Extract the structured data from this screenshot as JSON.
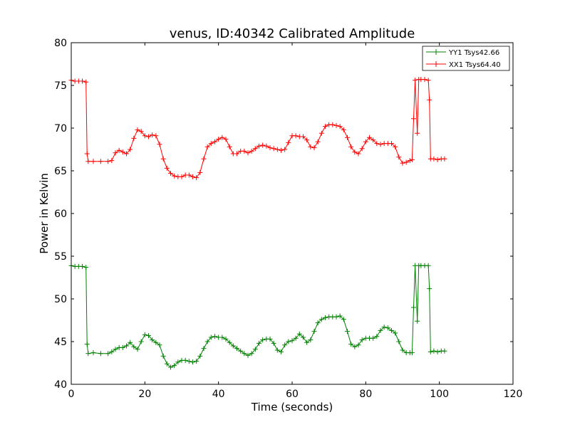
{
  "chart_data": {
    "type": "line",
    "title": "venus, ID:40342 Calibrated Amplitude",
    "xlabel": "Time (seconds)",
    "ylabel": "Power in Kelvin",
    "xlim": [
      0,
      120
    ],
    "ylim": [
      40,
      80
    ],
    "xticks": [
      "0",
      "20",
      "40",
      "60",
      "80",
      "100",
      "120"
    ],
    "yticks": [
      "40",
      "45",
      "50",
      "55",
      "60",
      "65",
      "70",
      "75",
      "80"
    ],
    "grid": false,
    "legend_position": "top-right",
    "marker": "+",
    "series": [
      {
        "name": "YY1 Tsys42.66",
        "color": "#008000",
        "points": [
          [
            0,
            53.9
          ],
          [
            1,
            53.8
          ],
          [
            2,
            53.8
          ],
          [
            3,
            53.8
          ],
          [
            4,
            53.7
          ],
          [
            4.3,
            44.7
          ],
          [
            4.6,
            43.6
          ],
          [
            6,
            43.7
          ],
          [
            8,
            43.6
          ],
          [
            10,
            43.6
          ],
          [
            11,
            43.8
          ],
          [
            12,
            44.1
          ],
          [
            13,
            44.3
          ],
          [
            14,
            44.3
          ],
          [
            15,
            44.5
          ],
          [
            16,
            44.9
          ],
          [
            17,
            44.4
          ],
          [
            18,
            44.1
          ],
          [
            19,
            45.0
          ],
          [
            20,
            45.8
          ],
          [
            21,
            45.7
          ],
          [
            22,
            45.2
          ],
          [
            23,
            44.9
          ],
          [
            24,
            44.6
          ],
          [
            25,
            43.3
          ],
          [
            26,
            42.4
          ],
          [
            27,
            42.0
          ],
          [
            28,
            42.2
          ],
          [
            29,
            42.6
          ],
          [
            30,
            42.8
          ],
          [
            31,
            42.8
          ],
          [
            32,
            42.7
          ],
          [
            33,
            42.6
          ],
          [
            34,
            42.7
          ],
          [
            35,
            43.3
          ],
          [
            36,
            44.2
          ],
          [
            37,
            45.0
          ],
          [
            38,
            45.5
          ],
          [
            39,
            45.6
          ],
          [
            40,
            45.5
          ],
          [
            41,
            45.5
          ],
          [
            42,
            45.3
          ],
          [
            43,
            44.9
          ],
          [
            44,
            44.5
          ],
          [
            45,
            44.2
          ],
          [
            46,
            43.9
          ],
          [
            47,
            43.6
          ],
          [
            48,
            43.4
          ],
          [
            49,
            43.6
          ],
          [
            50,
            44.1
          ],
          [
            51,
            44.8
          ],
          [
            52,
            45.2
          ],
          [
            53,
            45.3
          ],
          [
            54,
            45.3
          ],
          [
            55,
            44.8
          ],
          [
            56,
            44.0
          ],
          [
            57,
            43.8
          ],
          [
            58,
            44.6
          ],
          [
            59,
            45.0
          ],
          [
            60,
            45.1
          ],
          [
            61,
            45.4
          ],
          [
            62,
            45.9
          ],
          [
            63,
            45.5
          ],
          [
            64,
            44.9
          ],
          [
            65,
            45.2
          ],
          [
            66,
            46.2
          ],
          [
            67,
            47.2
          ],
          [
            68,
            47.6
          ],
          [
            69,
            47.8
          ],
          [
            70,
            47.9
          ],
          [
            71,
            47.9
          ],
          [
            72,
            47.9
          ],
          [
            73,
            48.0
          ],
          [
            74,
            47.6
          ],
          [
            75,
            46.2
          ],
          [
            76,
            44.7
          ],
          [
            77,
            44.4
          ],
          [
            78,
            44.6
          ],
          [
            79,
            45.2
          ],
          [
            80,
            45.4
          ],
          [
            81,
            45.4
          ],
          [
            82,
            45.4
          ],
          [
            83,
            45.6
          ],
          [
            84,
            46.3
          ],
          [
            85,
            46.7
          ],
          [
            86,
            46.6
          ],
          [
            87,
            46.3
          ],
          [
            88,
            46.0
          ],
          [
            89,
            45.0
          ],
          [
            90,
            44.0
          ],
          [
            91,
            43.7
          ],
          [
            92,
            43.7
          ],
          [
            92.6,
            43.7
          ],
          [
            93,
            49.0
          ],
          [
            93.4,
            53.9
          ],
          [
            94,
            47.4
          ],
          [
            94.4,
            53.9
          ],
          [
            95,
            53.9
          ],
          [
            96,
            53.9
          ],
          [
            97,
            53.9
          ],
          [
            97.3,
            51.2
          ],
          [
            97.6,
            43.8
          ],
          [
            98.5,
            43.9
          ],
          [
            99.5,
            43.8
          ],
          [
            100.5,
            43.9
          ],
          [
            101.4,
            43.9
          ]
        ]
      },
      {
        "name": "XX1 Tsys64.40",
        "color": "#ff0000",
        "points": [
          [
            0,
            75.6
          ],
          [
            1,
            75.5
          ],
          [
            2,
            75.5
          ],
          [
            3,
            75.5
          ],
          [
            4,
            75.4
          ],
          [
            4.3,
            67.0
          ],
          [
            4.6,
            66.1
          ],
          [
            6,
            66.1
          ],
          [
            8,
            66.1
          ],
          [
            10,
            66.1
          ],
          [
            11,
            66.2
          ],
          [
            12,
            67.1
          ],
          [
            13,
            67.4
          ],
          [
            14,
            67.2
          ],
          [
            15,
            67.0
          ],
          [
            16,
            67.5
          ],
          [
            17,
            68.8
          ],
          [
            18,
            69.8
          ],
          [
            19,
            69.6
          ],
          [
            20,
            69.1
          ],
          [
            21,
            69.0
          ],
          [
            22,
            69.2
          ],
          [
            23,
            69.1
          ],
          [
            24,
            68.1
          ],
          [
            25,
            66.4
          ],
          [
            26,
            65.3
          ],
          [
            27,
            64.7
          ],
          [
            28,
            64.4
          ],
          [
            29,
            64.3
          ],
          [
            30,
            64.3
          ],
          [
            31,
            64.5
          ],
          [
            32,
            64.5
          ],
          [
            33,
            64.3
          ],
          [
            34,
            64.2
          ],
          [
            35,
            64.8
          ],
          [
            36,
            66.4
          ],
          [
            37,
            67.8
          ],
          [
            38,
            68.2
          ],
          [
            39,
            68.4
          ],
          [
            40,
            68.7
          ],
          [
            41,
            68.9
          ],
          [
            42,
            68.7
          ],
          [
            43,
            67.8
          ],
          [
            44,
            67.0
          ],
          [
            45,
            67.0
          ],
          [
            46,
            67.3
          ],
          [
            47,
            67.3
          ],
          [
            48,
            67.1
          ],
          [
            49,
            67.3
          ],
          [
            50,
            67.6
          ],
          [
            51,
            67.9
          ],
          [
            52,
            68.0
          ],
          [
            53,
            67.9
          ],
          [
            54,
            67.7
          ],
          [
            55,
            67.6
          ],
          [
            56,
            67.5
          ],
          [
            57,
            67.4
          ],
          [
            58,
            67.5
          ],
          [
            59,
            68.3
          ],
          [
            60,
            69.1
          ],
          [
            61,
            69.1
          ],
          [
            62,
            69.0
          ],
          [
            63,
            69.0
          ],
          [
            64,
            68.6
          ],
          [
            65,
            67.8
          ],
          [
            66,
            67.7
          ],
          [
            67,
            68.4
          ],
          [
            68,
            69.4
          ],
          [
            69,
            70.2
          ],
          [
            70,
            70.4
          ],
          [
            71,
            70.4
          ],
          [
            72,
            70.3
          ],
          [
            73,
            70.2
          ],
          [
            74,
            69.8
          ],
          [
            75,
            68.9
          ],
          [
            76,
            67.8
          ],
          [
            77,
            67.2
          ],
          [
            78,
            67.0
          ],
          [
            79,
            67.6
          ],
          [
            80,
            68.4
          ],
          [
            81,
            68.9
          ],
          [
            82,
            68.6
          ],
          [
            83,
            68.2
          ],
          [
            84,
            68.1
          ],
          [
            85,
            68.2
          ],
          [
            86,
            68.2
          ],
          [
            87,
            68.2
          ],
          [
            88,
            67.8
          ],
          [
            89,
            66.6
          ],
          [
            90,
            65.9
          ],
          [
            91,
            66.0
          ],
          [
            92,
            66.2
          ],
          [
            92.6,
            66.3
          ],
          [
            93,
            71.1
          ],
          [
            93.4,
            75.6
          ],
          [
            94,
            69.4
          ],
          [
            94.4,
            75.7
          ],
          [
            95,
            75.7
          ],
          [
            96,
            75.7
          ],
          [
            97,
            75.6
          ],
          [
            97.3,
            73.3
          ],
          [
            97.6,
            66.4
          ],
          [
            98.5,
            66.4
          ],
          [
            99.5,
            66.3
          ],
          [
            100.5,
            66.4
          ],
          [
            101.4,
            66.4
          ]
        ]
      }
    ]
  }
}
